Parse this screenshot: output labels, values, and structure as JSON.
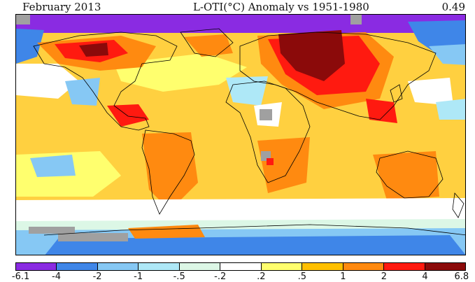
{
  "header": {
    "month_label": "February 2013",
    "title": "L-OTI(°C) Anomaly vs 1951-1980",
    "global_mean": "0.49"
  },
  "legend": {
    "ticks": [
      "-6.1",
      "-4",
      "-2",
      "-1",
      "-.5",
      "-.2",
      ".2",
      ".5",
      "1",
      "2",
      "4",
      "6.8"
    ],
    "colors": [
      "#8a2be2",
      "#3f86e8",
      "#86c8f4",
      "#aee8f7",
      "#dcf7e6",
      "#ffffff",
      "#ffff6e",
      "#ffc000",
      "#ff8a10",
      "#ff1a10",
      "#8b0a0a"
    ]
  },
  "palette": {
    "ocean_base": "#ffd040",
    "land_outline": "#000000",
    "missing_data": "#a0a0a0"
  }
}
